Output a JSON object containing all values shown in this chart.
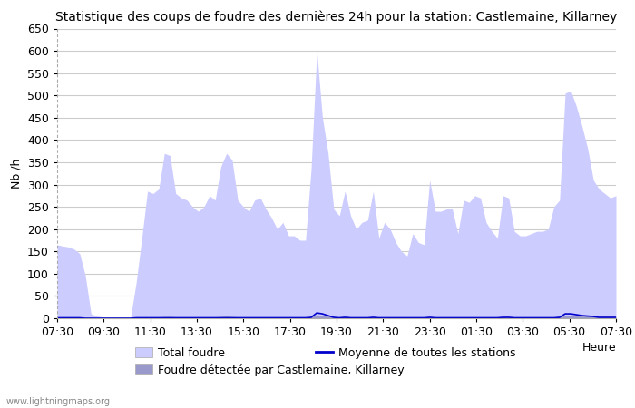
{
  "title": "Statistique des coups de foudre des dernières 24h pour la station: Castlemaine, Killarney",
  "ylabel": "Nb /h",
  "xlabel": "Heure",
  "watermark": "www.lightningmaps.org",
  "x_ticks": [
    "07:30",
    "09:30",
    "11:30",
    "13:30",
    "15:30",
    "17:30",
    "19:30",
    "21:30",
    "23:30",
    "01:30",
    "03:30",
    "05:30",
    "07:30"
  ],
  "ylim": [
    0,
    650
  ],
  "yticks": [
    0,
    50,
    100,
    150,
    200,
    250,
    300,
    350,
    400,
    450,
    500,
    550,
    600,
    650
  ],
  "total_foudre_color": "#ccccff",
  "foudre_detectee_color": "#9999cc",
  "moyenne_color": "#0000cc",
  "background_color": "#ffffff",
  "grid_color": "#cccccc",
  "title_fontsize": 10,
  "axis_fontsize": 9,
  "tick_fontsize": 9,
  "legend_fontsize": 9,
  "total_foudre": [
    165,
    162,
    160,
    155,
    145,
    95,
    10,
    5,
    3,
    2,
    2,
    2,
    2,
    2,
    80,
    180,
    285,
    280,
    290,
    370,
    365,
    280,
    270,
    265,
    250,
    240,
    250,
    275,
    265,
    340,
    370,
    355,
    265,
    250,
    240,
    265,
    270,
    245,
    225,
    200,
    215,
    185,
    185,
    175,
    175,
    335,
    600,
    450,
    370,
    245,
    230,
    285,
    230,
    200,
    215,
    220,
    285,
    180,
    215,
    200,
    170,
    150,
    140,
    190,
    170,
    165,
    310,
    240,
    240,
    245,
    245,
    190,
    265,
    260,
    275,
    270,
    215,
    195,
    180,
    275,
    270,
    195,
    185,
    185,
    190,
    195,
    195,
    200,
    250,
    265,
    505,
    510,
    475,
    430,
    380,
    310,
    290,
    280,
    270,
    275
  ],
  "foudre_detectee": [
    2,
    2,
    2,
    2,
    2,
    1,
    0,
    0,
    0,
    0,
    0,
    0,
    0,
    0,
    1,
    2,
    3,
    3,
    3,
    4,
    4,
    3,
    3,
    3,
    3,
    3,
    3,
    3,
    3,
    4,
    5,
    4,
    3,
    3,
    3,
    3,
    3,
    3,
    3,
    2,
    2,
    2,
    2,
    2,
    2,
    4,
    8,
    6,
    5,
    3,
    3,
    4,
    3,
    3,
    3,
    3,
    4,
    2,
    3,
    3,
    2,
    2,
    2,
    3,
    2,
    2,
    4,
    3,
    3,
    3,
    3,
    3,
    3,
    3,
    3,
    3,
    3,
    3,
    2,
    4,
    4,
    3,
    3,
    3,
    3,
    3,
    3,
    3,
    3,
    4,
    7,
    7,
    6,
    6,
    5,
    4,
    4,
    4,
    4,
    4
  ],
  "moyenne": [
    1,
    1,
    1,
    1,
    1,
    0,
    0,
    0,
    0,
    0,
    0,
    0,
    0,
    0,
    1,
    1,
    1,
    1,
    1,
    1,
    1,
    1,
    1,
    1,
    1,
    1,
    1,
    1,
    1,
    1,
    1,
    1,
    1,
    1,
    1,
    1,
    1,
    1,
    1,
    1,
    1,
    1,
    1,
    1,
    1,
    2,
    12,
    10,
    6,
    2,
    1,
    2,
    1,
    1,
    1,
    1,
    2,
    1,
    1,
    1,
    1,
    1,
    1,
    1,
    1,
    1,
    2,
    1,
    1,
    1,
    1,
    1,
    1,
    1,
    1,
    1,
    1,
    1,
    1,
    2,
    2,
    1,
    1,
    1,
    1,
    1,
    1,
    1,
    1,
    2,
    10,
    10,
    8,
    6,
    5,
    4,
    2,
    2,
    2,
    2
  ]
}
